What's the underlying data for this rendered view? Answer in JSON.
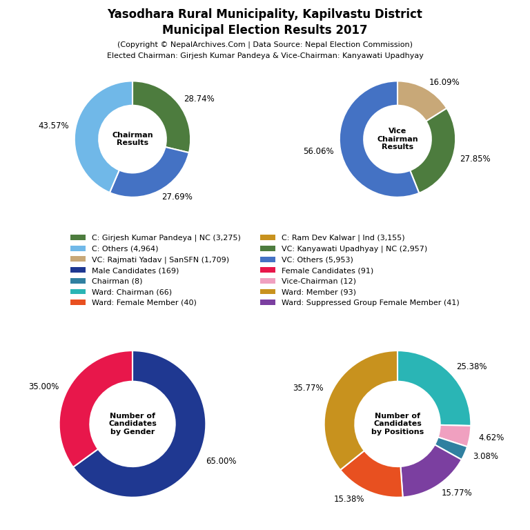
{
  "title": [
    "Yasodhara Rural Municipality, Kapilvastu District",
    "Municipal Election Results 2017"
  ],
  "subtitle": [
    "(Copyright © NepalArchives.Com | Data Source: Nepal Election Commission)",
    "Elected Chairman: Girjesh Kumar Pandeya & Vice-Chairman: Kanyawati Upadhyay"
  ],
  "chart_data": [
    {
      "type": "pie",
      "title": "Chairman\nResults",
      "values": [
        28.74,
        27.69,
        43.57
      ],
      "value_labels": [
        "28.74%",
        "27.69%",
        "43.57%"
      ],
      "colors": [
        "#4d7c3e",
        "#4472c4",
        "#70b8e8"
      ],
      "data_labels": true
    },
    {
      "type": "pie",
      "title": "Vice\nChairman\nResults",
      "values": [
        16.09,
        27.85,
        56.06
      ],
      "value_labels": [
        "16.09%",
        "27.85%",
        "56.06%"
      ],
      "colors": [
        "#c8a878",
        "#4d7c3e",
        "#4472c4"
      ],
      "data_labels": true
    },
    {
      "type": "pie",
      "title": "Number of\nCandidates\nby Gender",
      "values": [
        65.0,
        35.0
      ],
      "value_labels": [
        "65.00%",
        "35.00%"
      ],
      "colors": [
        "#1f3891",
        "#e8174b"
      ],
      "data_labels": true
    },
    {
      "type": "pie",
      "title": "Number of\nCandidates\nby Positions",
      "values": [
        25.38,
        4.62,
        3.08,
        15.77,
        15.38,
        35.77
      ],
      "value_labels": [
        "25.38%",
        "4.62%",
        "3.08%",
        "15.77%",
        "15.38%",
        "35.77%"
      ],
      "colors": [
        "#2ab5b5",
        "#f0a0c0",
        "#3080a0",
        "#7b3fa0",
        "#e85020",
        "#c8921e"
      ],
      "data_labels": true
    }
  ],
  "legend_items": [
    {
      "name": "C: Girjesh Kumar Pandeya | NC (3,275)",
      "color": "#4d7c3e"
    },
    {
      "name": "C: Others (4,964)",
      "color": "#70b8e8"
    },
    {
      "name": "VC: Rajmati Yadav | SanSFN (1,709)",
      "color": "#c8a878"
    },
    {
      "name": "Male Candidates (169)",
      "color": "#1f3891"
    },
    {
      "name": "Chairman (8)",
      "color": "#3080a0"
    },
    {
      "name": "Ward: Chairman (66)",
      "color": "#2ab5b5"
    },
    {
      "name": "Ward: Female Member (40)",
      "color": "#e85020"
    },
    {
      "name": "C: Ram Dev Kalwar | Ind (3,155)",
      "color": "#c8921e"
    },
    {
      "name": "VC: Kanyawati Upadhyay | NC (2,957)",
      "color": "#4d7c3e"
    },
    {
      "name": "VC: Others (5,953)",
      "color": "#4472c4"
    },
    {
      "name": "Female Candidates (91)",
      "color": "#e8174b"
    },
    {
      "name": "Vice-Chairman (12)",
      "color": "#f0a0c0"
    },
    {
      "name": "Ward: Member (93)",
      "color": "#c8921e"
    },
    {
      "name": "Ward: Suppressed Group Female Member (41)",
      "color": "#7b3fa0"
    }
  ]
}
